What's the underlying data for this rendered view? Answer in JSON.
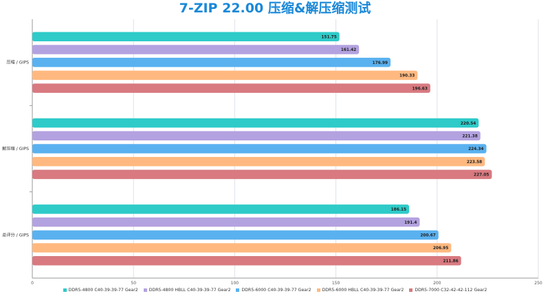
{
  "chart_data": {
    "type": "bar",
    "orientation": "horizontal",
    "title": "7-ZIP 22.00 压缩&解压缩测试",
    "title_color": "#1a88d8",
    "categories": [
      "压缩 / GIPS",
      "解压缩 / GIPS",
      "总评分 / GIPS"
    ],
    "xlim": [
      0,
      250
    ],
    "x_ticks": [
      "0",
      "50",
      "100",
      "150",
      "200",
      "250"
    ],
    "grid": true,
    "legend_position": "bottom",
    "series": [
      {
        "name": "DDR5-4800 C40-39-39-77 Gear2",
        "color": "#2ecbc9",
        "values": [
          151.75,
          220.54,
          186.15
        ],
        "labels": [
          "151.75",
          "220.54",
          "186.15"
        ]
      },
      {
        "name": "DDR5-4800 HBLL C40-39-39-77 Gear2",
        "color": "#b3a2e0",
        "values": [
          161.42,
          221.38,
          191.4
        ],
        "labels": [
          "161.42",
          "221.38",
          "191.4"
        ]
      },
      {
        "name": "DDR5-6000 C40-39-39-77 Gear2",
        "color": "#5ab1ef",
        "values": [
          176.99,
          224.34,
          200.67
        ],
        "labels": [
          "176.99",
          "224.34",
          "200.67"
        ]
      },
      {
        "name": "DDR5-6000 HBLL C40-39-39-77 Gear2",
        "color": "#ffb980",
        "values": [
          190.33,
          223.58,
          206.95
        ],
        "labels": [
          "190.33",
          "223.58",
          "206.95"
        ]
      },
      {
        "name": "DDR5-7000 C32-42-42-112 Gear2",
        "color": "#d87a80",
        "values": [
          196.63,
          227.05,
          211.86
        ],
        "labels": [
          "196.63",
          "227.05",
          "211.86"
        ]
      }
    ]
  }
}
